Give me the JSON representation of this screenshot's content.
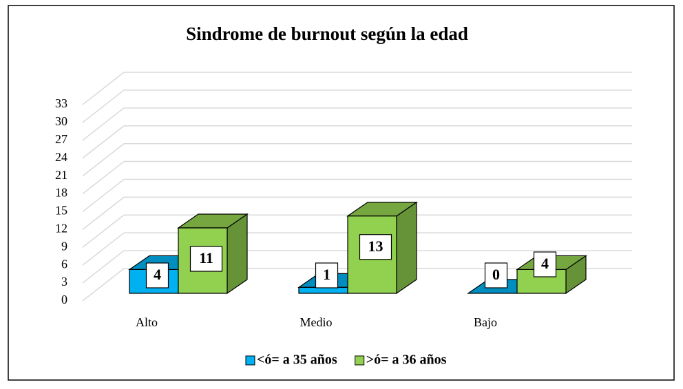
{
  "chart_data": {
    "type": "bar3d",
    "title": "Sindrome de burnout según la edad",
    "categories": [
      "Alto",
      "Medio",
      "Bajo"
    ],
    "series": [
      {
        "name": "<ó= a 35 años",
        "color": "#00b0f0",
        "values": [
          4,
          1,
          0
        ]
      },
      {
        "name": ">ó= a 36 años",
        "color": "#92d050",
        "values": [
          11,
          13,
          4
        ]
      }
    ],
    "ylim": [
      0,
      33
    ],
    "yticks": [
      0,
      3,
      6,
      9,
      12,
      15,
      18,
      21,
      24,
      27,
      30,
      33
    ],
    "grid": true,
    "legend": "bottom"
  }
}
